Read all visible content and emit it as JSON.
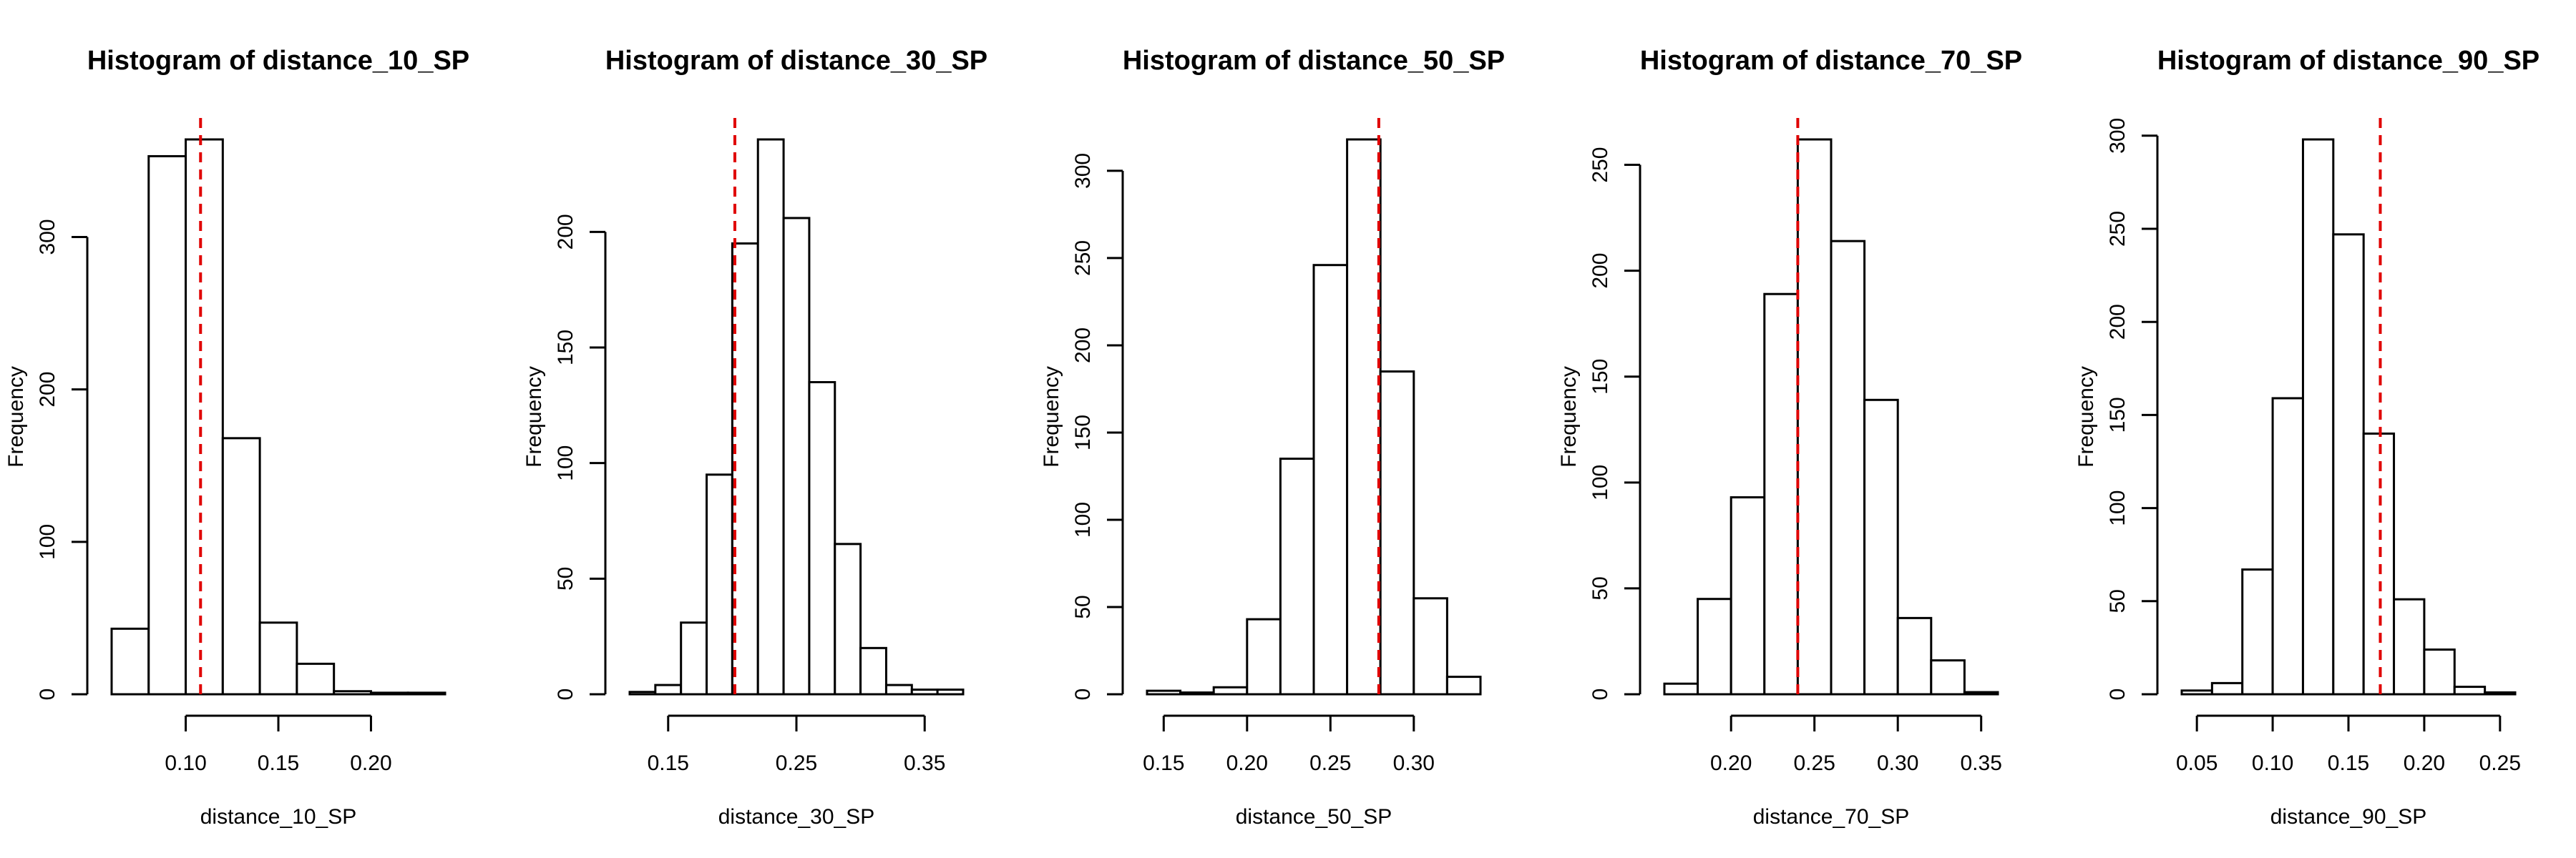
{
  "chart_data": [
    {
      "type": "histogram",
      "title": "Histogram of distance_10_SP",
      "xlabel": "distance_10_SP",
      "ylabel": "Frequency",
      "bin_edges": [
        0.06,
        0.08,
        0.1,
        0.12,
        0.14,
        0.16,
        0.18,
        0.2,
        0.22,
        0.24
      ],
      "counts": [
        43,
        353,
        364,
        168,
        47,
        20,
        2,
        1,
        1
      ],
      "xlim": [
        0.06,
        0.24
      ],
      "ylim": [
        0,
        364
      ],
      "x_ticks": [
        0.1,
        0.15,
        0.2
      ],
      "x_tick_labels": [
        "0.10",
        "0.15",
        "0.20"
      ],
      "y_ticks": [
        0,
        100,
        200,
        300
      ],
      "y_tick_labels": [
        "0",
        "100",
        "200",
        "300"
      ],
      "reference_line": {
        "x": 0.108,
        "color": "#e00000",
        "style": "dashed"
      }
    },
    {
      "type": "histogram",
      "title": "Histogram of distance_30_SP",
      "xlabel": "distance_30_SP",
      "ylabel": "Frequency",
      "bin_edges": [
        0.12,
        0.14,
        0.16,
        0.18,
        0.2,
        0.22,
        0.24,
        0.26,
        0.28,
        0.3,
        0.32,
        0.34,
        0.36,
        0.38
      ],
      "counts": [
        1,
        4,
        31,
        95,
        195,
        240,
        206,
        135,
        65,
        20,
        4,
        2,
        2
      ],
      "xlim": [
        0.12,
        0.38
      ],
      "ylim": [
        0,
        240
      ],
      "x_ticks": [
        0.15,
        0.25,
        0.35
      ],
      "x_tick_labels": [
        "0.15",
        "0.25",
        "0.35"
      ],
      "y_ticks": [
        0,
        50,
        100,
        150,
        200
      ],
      "y_tick_labels": [
        "0",
        "50",
        "100",
        "150",
        "200"
      ],
      "reference_line": {
        "x": 0.202,
        "color": "#e00000",
        "style": "dashed"
      }
    },
    {
      "type": "histogram",
      "title": "Histogram of distance_50_SP",
      "xlabel": "distance_50_SP",
      "ylabel": "Frequency",
      "bin_edges": [
        0.14,
        0.16,
        0.18,
        0.2,
        0.22,
        0.24,
        0.26,
        0.28,
        0.3,
        0.32,
        0.34
      ],
      "counts": [
        2,
        1,
        4,
        43,
        135,
        246,
        318,
        185,
        55,
        10
      ],
      "xlim": [
        0.14,
        0.34
      ],
      "ylim": [
        0,
        318
      ],
      "x_ticks": [
        0.15,
        0.2,
        0.25,
        0.3
      ],
      "x_tick_labels": [
        "0.15",
        "0.20",
        "0.25",
        "0.30"
      ],
      "y_ticks": [
        0,
        50,
        100,
        150,
        200,
        250,
        300
      ],
      "y_tick_labels": [
        "0",
        "50",
        "100",
        "150",
        "200",
        "250",
        "300"
      ],
      "reference_line": {
        "x": 0.279,
        "color": "#e00000",
        "style": "dashed"
      }
    },
    {
      "type": "histogram",
      "title": "Histogram of distance_70_SP",
      "xlabel": "distance_70_SP",
      "ylabel": "Frequency",
      "bin_edges": [
        0.16,
        0.18,
        0.2,
        0.22,
        0.24,
        0.26,
        0.28,
        0.3,
        0.32,
        0.34,
        0.36
      ],
      "counts": [
        5,
        45,
        93,
        189,
        262,
        214,
        139,
        36,
        16,
        1
      ],
      "xlim": [
        0.16,
        0.36
      ],
      "ylim": [
        0,
        262
      ],
      "x_ticks": [
        0.2,
        0.25,
        0.3,
        0.35
      ],
      "x_tick_labels": [
        "0.20",
        "0.25",
        "0.30",
        "0.35"
      ],
      "y_ticks": [
        0,
        50,
        100,
        150,
        200,
        250
      ],
      "y_tick_labels": [
        "0",
        "50",
        "100",
        "150",
        "200",
        "250"
      ],
      "reference_line": {
        "x": 0.24,
        "color": "#e00000",
        "style": "dashed"
      }
    },
    {
      "type": "histogram",
      "title": "Histogram of distance_90_SP",
      "xlabel": "distance_90_SP",
      "ylabel": "Frequency",
      "bin_edges": [
        0.04,
        0.06,
        0.08,
        0.1,
        0.12,
        0.14,
        0.16,
        0.18,
        0.2,
        0.22,
        0.24,
        0.26
      ],
      "counts": [
        2,
        6,
        67,
        159,
        298,
        247,
        140,
        51,
        24,
        4,
        1
      ],
      "xlim": [
        0.04,
        0.26
      ],
      "ylim": [
        0,
        298
      ],
      "x_ticks": [
        0.05,
        0.1,
        0.15,
        0.2,
        0.25
      ],
      "x_tick_labels": [
        "0.05",
        "0.10",
        "0.15",
        "0.20",
        "0.25"
      ],
      "y_ticks": [
        0,
        50,
        100,
        150,
        200,
        250,
        300
      ],
      "y_tick_labels": [
        "0",
        "50",
        "100",
        "150",
        "200",
        "250",
        "300"
      ],
      "reference_line": {
        "x": 0.171,
        "color": "#e00000",
        "style": "dashed"
      }
    }
  ]
}
